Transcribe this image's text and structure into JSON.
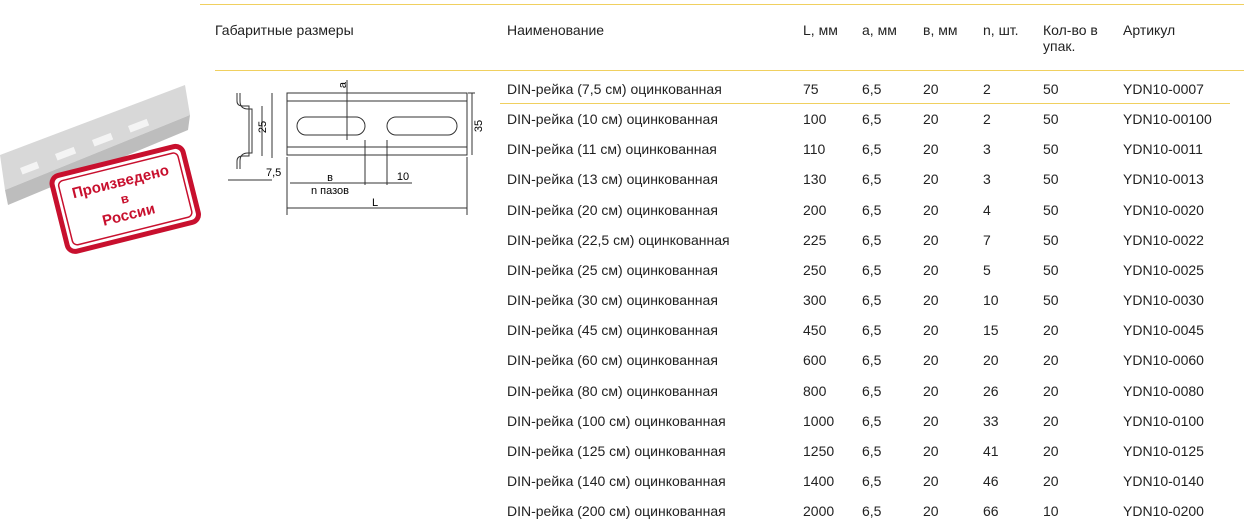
{
  "header": {
    "dimensions": "Габаритные размеры",
    "columns": [
      "Наименование",
      "L, мм",
      "а, мм",
      "в, мм",
      "n, шт.",
      "Кол-во в упак.",
      "Артикул"
    ]
  },
  "stamp": [
    "Произведено",
    "в",
    "России"
  ],
  "diagram": {
    "a": "а",
    "h25": "25",
    "h35": "35",
    "w75": "7,5",
    "b": "в",
    "slots": "n пазов",
    "d10": "10",
    "L": "L"
  },
  "table": {
    "rows": [
      [
        "DIN-рейка (7,5 см) оцинкованная",
        "75",
        "6,5",
        "20",
        "2",
        "50",
        "YDN10-0007"
      ],
      [
        "DIN-рейка (10 см) оцинкованная",
        "100",
        "6,5",
        "20",
        "2",
        "50",
        "YDN10-00100"
      ],
      [
        "DIN-рейка (11 см) оцинкованная",
        "110",
        "6,5",
        "20",
        "3",
        "50",
        "YDN10-0011"
      ],
      [
        "DIN-рейка (13 см) оцинкованная",
        "130",
        "6,5",
        "20",
        "3",
        "50",
        "YDN10-0013"
      ],
      [
        "DIN-рейка (20 см) оцинкованная",
        "200",
        "6,5",
        "20",
        "4",
        "50",
        "YDN10-0020"
      ],
      [
        "DIN-рейка (22,5 см) оцинкованная",
        "225",
        "6,5",
        "20",
        "7",
        "50",
        "YDN10-0022"
      ],
      [
        "DIN-рейка (25 см) оцинкованная",
        "250",
        "6,5",
        "20",
        "5",
        "50",
        "YDN10-0025"
      ],
      [
        "DIN-рейка (30 см) оцинкованная",
        "300",
        "6,5",
        "20",
        "10",
        "50",
        "YDN10-0030"
      ],
      [
        "DIN-рейка (45 см) оцинкованная",
        "450",
        "6,5",
        "20",
        "15",
        "20",
        "YDN10-0045"
      ],
      [
        "DIN-рейка (60 см) оцинкованная",
        "600",
        "6,5",
        "20",
        "20",
        "20",
        "YDN10-0060"
      ],
      [
        "DIN-рейка (80 см) оцинкованная",
        "800",
        "6,5",
        "20",
        "26",
        "20",
        "YDN10-0080"
      ],
      [
        "DIN-рейка (100 см) оцинкованная",
        "1000",
        "6,5",
        "20",
        "33",
        "20",
        "YDN10-0100"
      ],
      [
        "DIN-рейка (125 см) оцинкованная",
        "1250",
        "6,5",
        "20",
        "41",
        "20",
        "YDN10-0125"
      ],
      [
        "DIN-рейка (140 см) оцинкованная",
        "1400",
        "6,5",
        "20",
        "46",
        "20",
        "YDN10-0140"
      ],
      [
        "DIN-рейка (200 см) оцинкованная",
        "2000",
        "6,5",
        "20",
        "66",
        "10",
        "YDN10-0200"
      ]
    ]
  }
}
